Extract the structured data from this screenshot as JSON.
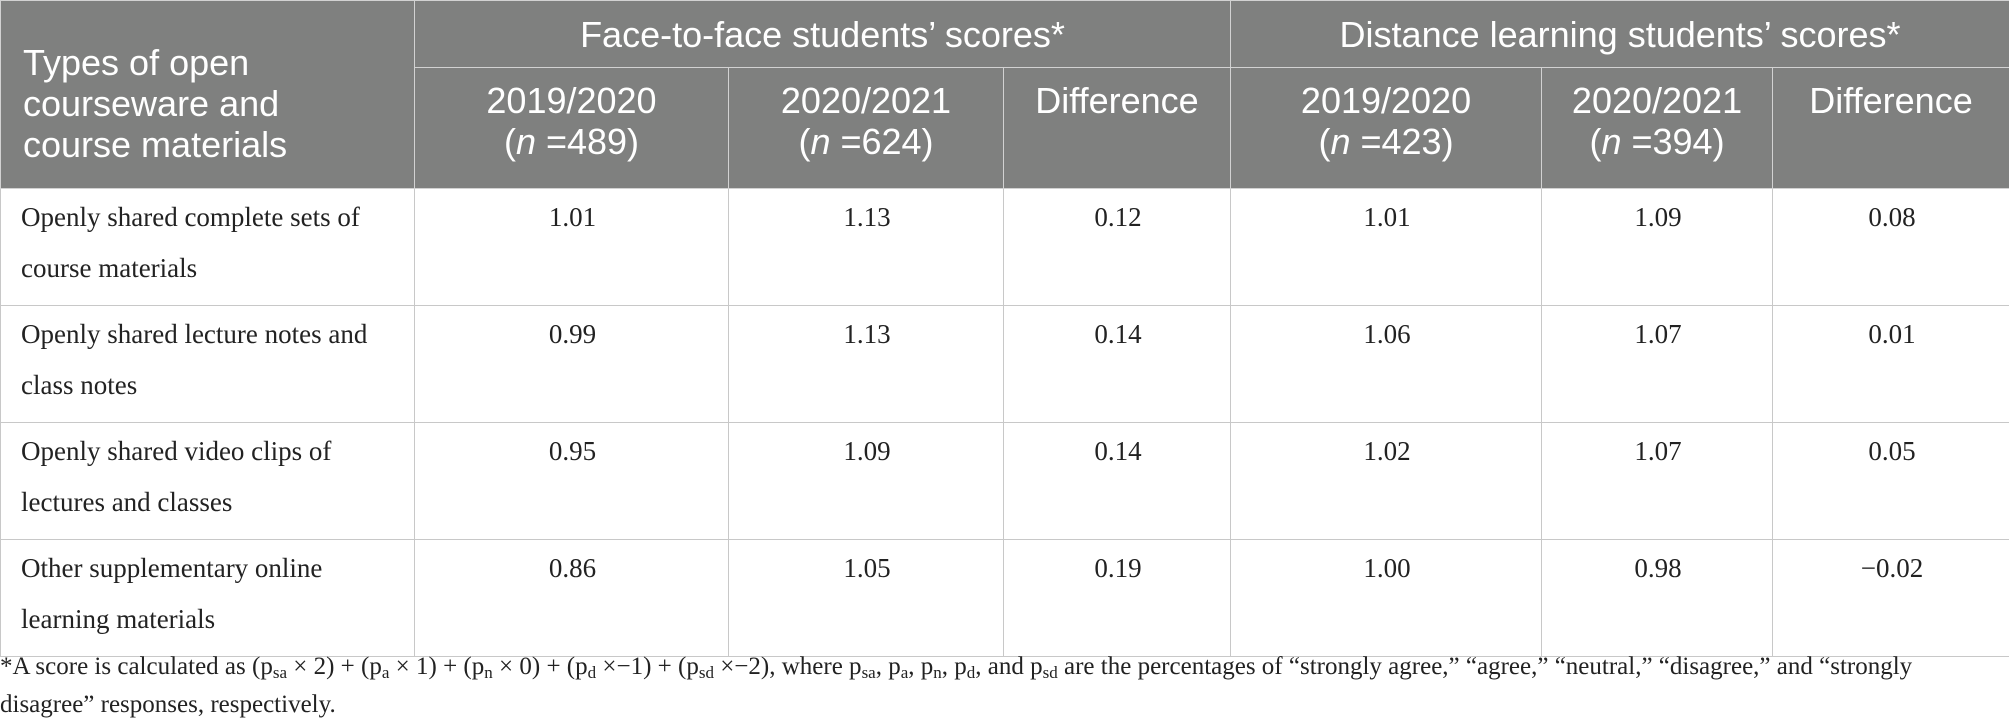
{
  "table": {
    "row_header": "Types of open courseware and course materials",
    "groups": [
      "Face-to-face students’ scores*",
      "Distance learning students’ scores*"
    ],
    "subheaders": [
      {
        "year": "2019/2020",
        "n_label": "n",
        "n_value": " =489)"
      },
      {
        "year": "2020/2021",
        "n_label": "n",
        "n_value": " =624)"
      },
      {
        "label": "Difference"
      },
      {
        "year": "2019/2020",
        "n_label": "n",
        "n_value": " =423)"
      },
      {
        "year": "2020/2021",
        "n_label": "n",
        "n_value": " =394)"
      },
      {
        "label": "Difference"
      }
    ],
    "rows": [
      {
        "label": "Openly shared complete sets of course materials",
        "values": [
          "1.01",
          "1.13",
          "0.12",
          "1.01",
          "1.09",
          "0.08"
        ]
      },
      {
        "label": "Openly shared lecture notes and class notes",
        "values": [
          "0.99",
          "1.13",
          "0.14",
          "1.06",
          "1.07",
          "0.01"
        ]
      },
      {
        "label": "Openly shared video clips of lectures and classes",
        "values": [
          "0.95",
          "1.09",
          "0.14",
          "1.02",
          "1.07",
          "0.05"
        ]
      },
      {
        "label": "Other supplementary online learning materials",
        "values": [
          "0.86",
          "1.05",
          "0.19",
          "1.00",
          "0.98",
          "−0.02"
        ]
      }
    ]
  },
  "footnote": {
    "t1": "*A score is calculated as (p",
    "s1": "sa",
    "t2": " × 2) + (p",
    "s2": "a",
    "t3": " × 1) + (p",
    "s3": "n",
    "t4": " × 0) + (p",
    "s4": "d",
    "t5": " ×−1) + (p",
    "s5": "sd",
    "t6": " ×−2), where p",
    "s6": "sa",
    "t7": ", p",
    "s7": "a",
    "t8": ", p",
    "s8": "n",
    "t9": ", p",
    "s9": "d",
    "t10": ", and p",
    "s10": "sd",
    "t11": " are the percentages of “strongly agree,” “agree,” “neutral,” “disagree,” and “strongly disagree” responses, respectively."
  },
  "colors": {
    "header_bg": "#7f807f",
    "header_text": "#ffffff",
    "grid": "#c8c8c8"
  }
}
